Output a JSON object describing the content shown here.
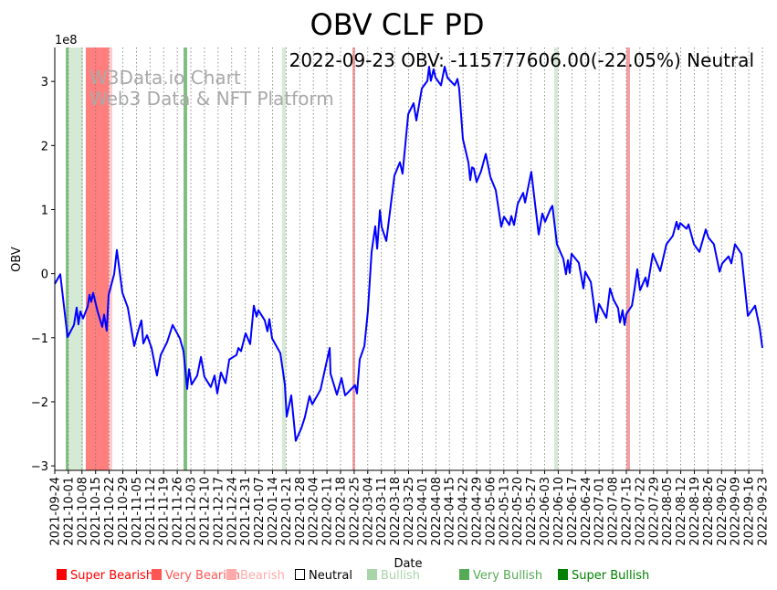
{
  "chart_data": {
    "type": "line",
    "title": "OBV CLF PD",
    "annotation": "2022-09-23 OBV: -115777606.00(-22.05%) Neutral",
    "watermark": [
      "W3Data.io Chart",
      "Web3 Data & NFT Platform"
    ],
    "xlabel": "Date",
    "ylabel": "OBV",
    "y_scale_label": "1e8",
    "y_unit": 100000000,
    "ylim": [
      -3.07,
      3.53
    ],
    "yticks": [
      -3,
      -2,
      -1,
      0,
      1,
      2,
      3
    ],
    "yticklabels": [
      "−3",
      "−2",
      "−1",
      "0",
      "1",
      "2",
      "3"
    ],
    "x_unit": "weeks since 2021-09-24",
    "xlim": [
      0,
      52
    ],
    "grid": "vertical dotted",
    "xticklabels": [
      "2021-09-24",
      "2021-10-01",
      "2021-10-08",
      "2021-10-15",
      "2021-10-22",
      "2021-10-29",
      "2021-11-05",
      "2021-11-12",
      "2021-11-19",
      "2021-11-26",
      "2021-12-03",
      "2021-12-10",
      "2021-12-17",
      "2021-12-24",
      "2021-12-31",
      "2022-01-07",
      "2022-01-14",
      "2022-01-21",
      "2022-01-28",
      "2022-02-04",
      "2022-02-11",
      "2022-02-18",
      "2022-02-25",
      "2022-03-04",
      "2022-03-11",
      "2022-03-18",
      "2022-03-25",
      "2022-04-01",
      "2022-04-08",
      "2022-04-15",
      "2022-04-22",
      "2022-04-29",
      "2022-05-06",
      "2022-05-13",
      "2022-05-20",
      "2022-05-27",
      "2022-06-03",
      "2022-06-10",
      "2022-06-17",
      "2022-06-24",
      "2022-07-01",
      "2022-07-08",
      "2022-07-15",
      "2022-07-22",
      "2022-07-29",
      "2022-08-05",
      "2022-08-12",
      "2022-08-19",
      "2022-08-26",
      "2022-09-02",
      "2022-09-09",
      "2022-09-16",
      "2022-09-23"
    ],
    "series": [
      {
        "name": "OBV",
        "color": "#0000ff",
        "points": [
          [
            0,
            -0.16
          ],
          [
            0.4,
            -0.01
          ],
          [
            0.94,
            -0.99
          ],
          [
            1.41,
            -0.8
          ],
          [
            1.61,
            -0.53
          ],
          [
            1.74,
            -0.79
          ],
          [
            1.88,
            -0.59
          ],
          [
            2.08,
            -0.7
          ],
          [
            2.42,
            -0.51
          ],
          [
            2.55,
            -0.33
          ],
          [
            2.68,
            -0.44
          ],
          [
            2.82,
            -0.3
          ],
          [
            3.15,
            -0.59
          ],
          [
            3.49,
            -0.83
          ],
          [
            3.62,
            -0.64
          ],
          [
            3.82,
            -0.89
          ],
          [
            3.96,
            -0.33
          ],
          [
            4.36,
            -0.01
          ],
          [
            4.56,
            0.37
          ],
          [
            4.97,
            -0.3
          ],
          [
            5.37,
            -0.53
          ],
          [
            5.84,
            -1.13
          ],
          [
            6.17,
            -0.86
          ],
          [
            6.37,
            -0.73
          ],
          [
            6.51,
            -1.09
          ],
          [
            6.78,
            -0.96
          ],
          [
            7.11,
            -1.16
          ],
          [
            7.51,
            -1.59
          ],
          [
            7.78,
            -1.27
          ],
          [
            8.25,
            -1.07
          ],
          [
            8.66,
            -0.8
          ],
          [
            9.19,
            -1.01
          ],
          [
            9.46,
            -1.21
          ],
          [
            9.73,
            -1.8
          ],
          [
            9.86,
            -1.49
          ],
          [
            10.06,
            -1.73
          ],
          [
            10.47,
            -1.59
          ],
          [
            10.74,
            -1.3
          ],
          [
            11.0,
            -1.61
          ],
          [
            11.47,
            -1.77
          ],
          [
            11.74,
            -1.59
          ],
          [
            11.94,
            -1.87
          ],
          [
            12.21,
            -1.54
          ],
          [
            12.55,
            -1.71
          ],
          [
            12.82,
            -1.34
          ],
          [
            13.35,
            -1.27
          ],
          [
            13.49,
            -1.16
          ],
          [
            13.69,
            -1.21
          ],
          [
            14.02,
            -0.93
          ],
          [
            14.36,
            -1.1
          ],
          [
            14.63,
            -0.5
          ],
          [
            14.83,
            -0.67
          ],
          [
            14.96,
            -0.57
          ],
          [
            15.43,
            -0.73
          ],
          [
            15.63,
            -0.9
          ],
          [
            15.77,
            -0.71
          ],
          [
            15.97,
            -1.01
          ],
          [
            16.57,
            -1.24
          ],
          [
            16.91,
            -1.73
          ],
          [
            17.04,
            -2.23
          ],
          [
            17.38,
            -1.9
          ],
          [
            17.71,
            -2.61
          ],
          [
            18.12,
            -2.41
          ],
          [
            18.38,
            -2.24
          ],
          [
            18.72,
            -1.91
          ],
          [
            18.92,
            -2.04
          ],
          [
            19.53,
            -1.81
          ],
          [
            19.79,
            -1.56
          ],
          [
            20.2,
            -1.16
          ],
          [
            20.26,
            -1.56
          ],
          [
            20.73,
            -1.89
          ],
          [
            21.07,
            -1.63
          ],
          [
            21.34,
            -1.9
          ],
          [
            22.07,
            -1.74
          ],
          [
            22.21,
            -1.87
          ],
          [
            22.41,
            -1.34
          ],
          [
            22.75,
            -1.13
          ],
          [
            23.01,
            -0.59
          ],
          [
            23.28,
            0.34
          ],
          [
            23.55,
            0.74
          ],
          [
            23.69,
            0.39
          ],
          [
            23.89,
            0.99
          ],
          [
            24.02,
            0.73
          ],
          [
            24.36,
            0.51
          ],
          [
            24.96,
            1.53
          ],
          [
            25.36,
            1.74
          ],
          [
            25.56,
            1.56
          ],
          [
            25.97,
            2.49
          ],
          [
            26.37,
            2.66
          ],
          [
            26.57,
            2.39
          ],
          [
            26.97,
            2.89
          ],
          [
            27.38,
            3.01
          ],
          [
            27.51,
            3.23
          ],
          [
            27.64,
            3.01
          ],
          [
            27.84,
            3.19
          ],
          [
            27.98,
            3.06
          ],
          [
            28.38,
            2.94
          ],
          [
            28.65,
            3.23
          ],
          [
            28.85,
            3.06
          ],
          [
            29.39,
            2.94
          ],
          [
            29.59,
            3.04
          ],
          [
            29.72,
            2.89
          ],
          [
            29.99,
            2.1
          ],
          [
            30.4,
            1.73
          ],
          [
            30.53,
            1.46
          ],
          [
            30.66,
            1.66
          ],
          [
            30.8,
            1.64
          ],
          [
            31.0,
            1.43
          ],
          [
            31.33,
            1.6
          ],
          [
            31.67,
            1.87
          ],
          [
            32.01,
            1.51
          ],
          [
            32.41,
            1.3
          ],
          [
            32.81,
            0.73
          ],
          [
            33.01,
            0.89
          ],
          [
            33.41,
            0.76
          ],
          [
            33.55,
            0.9
          ],
          [
            33.75,
            0.76
          ],
          [
            34.02,
            1.09
          ],
          [
            34.42,
            1.26
          ],
          [
            34.56,
            1.11
          ],
          [
            35.02,
            1.59
          ],
          [
            35.56,
            0.61
          ],
          [
            35.83,
            0.94
          ],
          [
            36.03,
            0.81
          ],
          [
            36.43,
            1.01
          ],
          [
            36.57,
            1.06
          ],
          [
            36.9,
            0.46
          ],
          [
            37.37,
            0.23
          ],
          [
            37.57,
            -0.01
          ],
          [
            37.71,
            0.21
          ],
          [
            37.84,
            0.01
          ],
          [
            37.98,
            0.31
          ],
          [
            38.51,
            0.17
          ],
          [
            38.85,
            -0.23
          ],
          [
            38.98,
            0.03
          ],
          [
            39.39,
            -0.13
          ],
          [
            39.79,
            -0.76
          ],
          [
            39.99,
            -0.47
          ],
          [
            40.53,
            -0.69
          ],
          [
            40.8,
            -0.23
          ],
          [
            41.07,
            -0.41
          ],
          [
            41.4,
            -0.54
          ],
          [
            41.53,
            -0.76
          ],
          [
            41.73,
            -0.57
          ],
          [
            41.87,
            -0.8
          ],
          [
            42.0,
            -0.63
          ],
          [
            42.41,
            -0.5
          ],
          [
            42.61,
            -0.23
          ],
          [
            42.81,
            0.07
          ],
          [
            43.01,
            -0.26
          ],
          [
            43.41,
            -0.06
          ],
          [
            43.55,
            -0.2
          ],
          [
            43.95,
            0.31
          ],
          [
            44.49,
            0.04
          ],
          [
            44.95,
            0.46
          ],
          [
            45.42,
            0.59
          ],
          [
            45.69,
            0.81
          ],
          [
            45.83,
            0.69
          ],
          [
            45.96,
            0.79
          ],
          [
            46.43,
            0.7
          ],
          [
            46.57,
            0.77
          ],
          [
            46.97,
            0.46
          ],
          [
            47.37,
            0.34
          ],
          [
            47.84,
            0.69
          ],
          [
            48.04,
            0.56
          ],
          [
            48.44,
            0.46
          ],
          [
            48.85,
            0.03
          ],
          [
            49.05,
            0.16
          ],
          [
            49.52,
            0.27
          ],
          [
            49.72,
            0.16
          ],
          [
            49.99,
            0.46
          ],
          [
            50.46,
            0.31
          ],
          [
            50.93,
            -0.66
          ],
          [
            51.46,
            -0.5
          ],
          [
            51.8,
            -0.84
          ],
          [
            52,
            -1.1578
          ]
        ]
      }
    ],
    "signal_bands": [
      {
        "start": 0.81,
        "end": 1.01,
        "signal": "Very Bullish",
        "color": "#7fbf7f"
      },
      {
        "start": 1.01,
        "end": 2.08,
        "signal": "Bullish",
        "color": "#d5ead5"
      },
      {
        "start": 2.28,
        "end": 3.96,
        "signal": "Very Bearish",
        "color": "#ff7f7f"
      },
      {
        "start": 3.96,
        "end": 4.23,
        "signal": "Bearish",
        "color": "#ffcccc"
      },
      {
        "start": 9.46,
        "end": 9.73,
        "signal": "Very Bullish",
        "color": "#7fbf7f"
      },
      {
        "start": 16.7,
        "end": 16.98,
        "signal": "Bullish",
        "color": "#d5ead5"
      },
      {
        "start": 21.87,
        "end": 22.07,
        "signal": "Very Bearish",
        "color": "#f5a0a0"
      },
      {
        "start": 36.7,
        "end": 36.97,
        "signal": "Bullish",
        "color": "#d5ead5"
      },
      {
        "start": 42.0,
        "end": 42.27,
        "signal": "Very Bearish",
        "color": "#f5a0a0"
      }
    ],
    "legend": {
      "placement": "bottom",
      "items": [
        {
          "label": "Super Bearish",
          "color": "#ff0000"
        },
        {
          "label": "Very Bearish",
          "color": "#ff5555"
        },
        {
          "label": "Bearish",
          "color": "#ffaaaa"
        },
        {
          "label": "Neutral",
          "color": "#000000",
          "hollow": true
        },
        {
          "label": "Bullish",
          "color": "#aad4aa"
        },
        {
          "label": "Very Bullish",
          "color": "#55aa55"
        },
        {
          "label": "Super Bullish",
          "color": "#008000"
        }
      ]
    }
  }
}
